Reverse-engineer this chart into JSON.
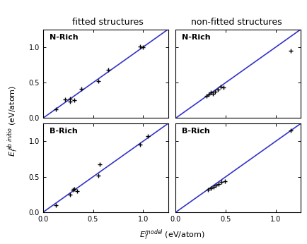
{
  "title_left": "fitted structures",
  "title_right": "non-fitted structures",
  "panels": {
    "top_left": {
      "label": "N-Rich",
      "x": [
        0.13,
        0.22,
        0.27,
        0.27,
        0.31,
        0.38,
        0.55,
        0.65,
        0.97,
        1.0
      ],
      "y": [
        0.12,
        0.26,
        0.27,
        0.23,
        0.25,
        0.41,
        0.52,
        0.68,
        1.01,
        1.0
      ]
    },
    "top_right": {
      "label": "N-Rich",
      "x": [
        0.31,
        0.33,
        0.35,
        0.37,
        0.39,
        0.42,
        0.45,
        0.48,
        1.15
      ],
      "y": [
        0.31,
        0.33,
        0.36,
        0.34,
        0.37,
        0.4,
        0.44,
        0.43,
        0.95
      ]
    },
    "bottom_left": {
      "label": "B-Rich",
      "x": [
        0.13,
        0.27,
        0.3,
        0.31,
        0.34,
        0.55,
        0.57,
        0.97,
        1.05
      ],
      "y": [
        0.1,
        0.25,
        0.32,
        0.33,
        0.3,
        0.52,
        0.67,
        0.95,
        1.07
      ]
    },
    "bottom_right": {
      "label": "B-Rich",
      "x": [
        0.32,
        0.35,
        0.38,
        0.4,
        0.43,
        0.46,
        0.49,
        1.15
      ],
      "y": [
        0.32,
        0.34,
        0.36,
        0.38,
        0.4,
        0.43,
        0.44,
        1.15
      ]
    }
  },
  "line_color": "#3333cc",
  "marker_color": "black",
  "marker": "+",
  "marker_size": 5,
  "marker_linewidth": 1.0,
  "xlim": [
    0,
    1.25
  ],
  "ylim": [
    0,
    1.25
  ],
  "xticks": [
    0,
    0.5,
    1.0
  ],
  "yticks": [
    0,
    0.5,
    1.0
  ],
  "background_color": "#ffffff",
  "title_fontsize": 9,
  "label_fontsize": 8,
  "tick_fontsize": 7,
  "panel_label_fontsize": 8
}
